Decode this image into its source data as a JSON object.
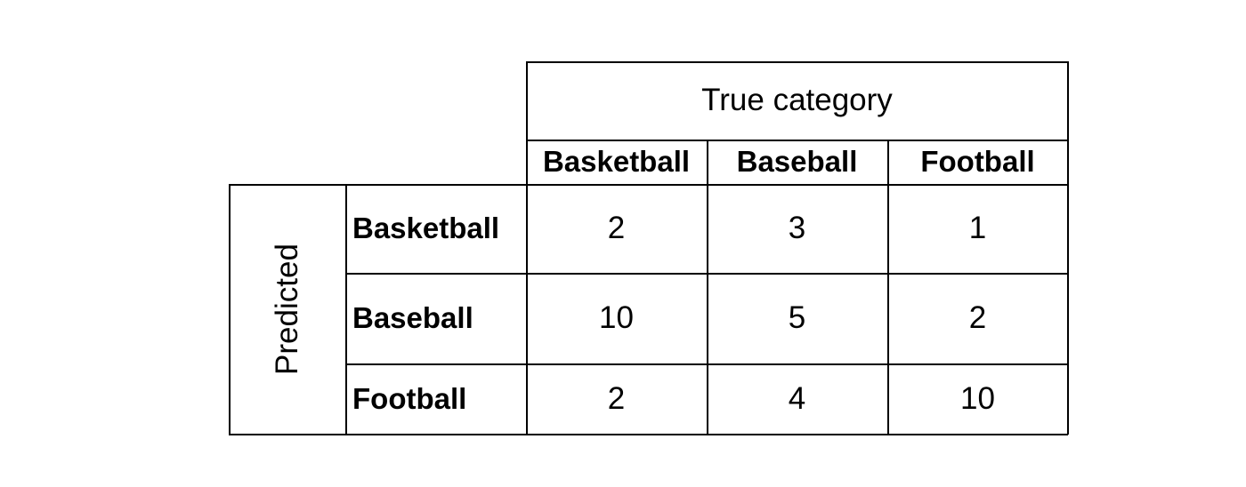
{
  "matrix": {
    "true_label": "True category",
    "predicted_label": "Predicted",
    "columns": [
      "Basketball",
      "Baseball",
      "Football"
    ],
    "rows": [
      {
        "label": "Basketball",
        "values": [
          "2",
          "3",
          "1"
        ]
      },
      {
        "label": "Baseball",
        "values": [
          "10",
          "5",
          "2"
        ]
      },
      {
        "label": "Football",
        "values": [
          "2",
          "4",
          "10"
        ]
      }
    ]
  }
}
